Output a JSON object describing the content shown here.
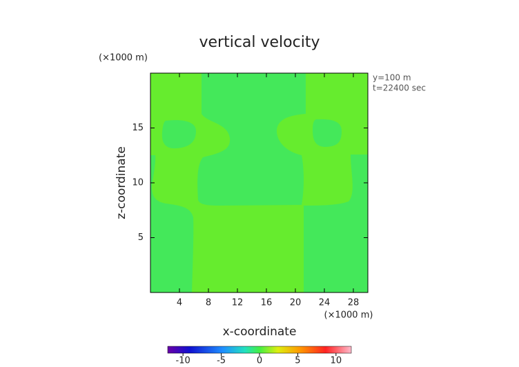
{
  "chart_data": {
    "type": "contour",
    "title": "vertical velocity",
    "x_unit": "(×1000 m)",
    "y_unit": "(×1000 m)",
    "annotations": [
      "y=100 m",
      "t=22400 sec"
    ],
    "x_label": "x-coordinate",
    "y_label": "z-coordinate",
    "xlim": [
      0,
      30
    ],
    "xticks": [
      4,
      8,
      12,
      16,
      20,
      24,
      28
    ],
    "ylim": [
      0,
      20
    ],
    "yticks": [
      5,
      10,
      15
    ],
    "colorbar": {
      "lim": [
        -12,
        12
      ],
      "ticks": [
        -10,
        -5,
        0,
        5,
        10
      ]
    }
  }
}
